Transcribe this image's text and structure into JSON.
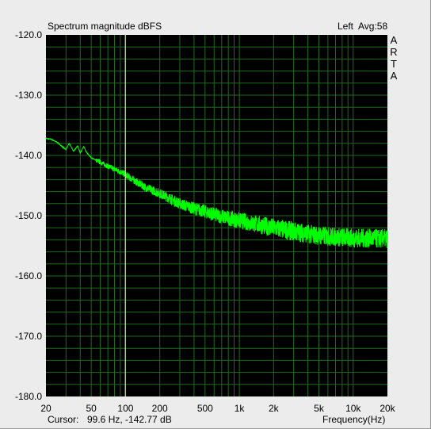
{
  "header": {
    "title": "Spectrum magnitude dBFS",
    "channel": "Left",
    "average": "Avg:58"
  },
  "brand": [
    "A",
    "R",
    "T",
    "A"
  ],
  "footer": {
    "cursor_label": "Cursor:",
    "cursor_value": "99.6 Hz, -142.77 dB",
    "xlabel": "Frequency(Hz)"
  },
  "colors": {
    "plot_background": "#000000",
    "grid": "#1f6b1f",
    "trace": "#00ff00",
    "cursor": "#ffffd0",
    "window_background": "#ececec"
  },
  "chart_data": {
    "type": "line",
    "title": "Spectrum magnitude dBFS",
    "xlabel": "Frequency(Hz)",
    "ylabel": "",
    "x_scale": "log",
    "xlim": [
      20,
      20000
    ],
    "ylim": [
      -180,
      -120
    ],
    "grid": true,
    "y_ticks": [
      -120,
      -130,
      -140,
      -150,
      -160,
      -170,
      -180
    ],
    "y_tick_labels": [
      "-120.0",
      "-130.0",
      "-140.0",
      "-150.0",
      "-160.0",
      "-170.0",
      "-180.0"
    ],
    "x_ticks": [
      20,
      50,
      100,
      200,
      500,
      1000,
      2000,
      5000,
      10000,
      20000
    ],
    "x_tick_labels": [
      "20",
      "50",
      "100",
      "200",
      "500",
      "1k",
      "2k",
      "5k",
      "10k",
      "20k"
    ],
    "cursor": {
      "x": 99.6,
      "y": -142.77
    },
    "series": [
      {
        "x": [
          20,
          22,
          25,
          28,
          30,
          32,
          35,
          38,
          40,
          43,
          45,
          50,
          55,
          60,
          70,
          80,
          90,
          100,
          120,
          150,
          200,
          250,
          300,
          400,
          500,
          600,
          800,
          1000,
          1500,
          2000,
          3000,
          4000,
          5000,
          7000,
          10000,
          15000,
          20000
        ],
        "y": [
          -137.2,
          -137.3,
          -137.8,
          -138.6,
          -139.0,
          -138.0,
          -139.3,
          -138.4,
          -139.6,
          -138.5,
          -139.4,
          -140.4,
          -140.8,
          -141.1,
          -141.8,
          -142.3,
          -142.7,
          -143.2,
          -144.2,
          -145.3,
          -146.3,
          -147.2,
          -148.0,
          -148.8,
          -149.3,
          -149.8,
          -150.4,
          -150.8,
          -151.5,
          -152.0,
          -152.6,
          -153.0,
          -153.3,
          -153.5,
          -153.7,
          -153.8,
          -153.8
        ]
      }
    ]
  }
}
